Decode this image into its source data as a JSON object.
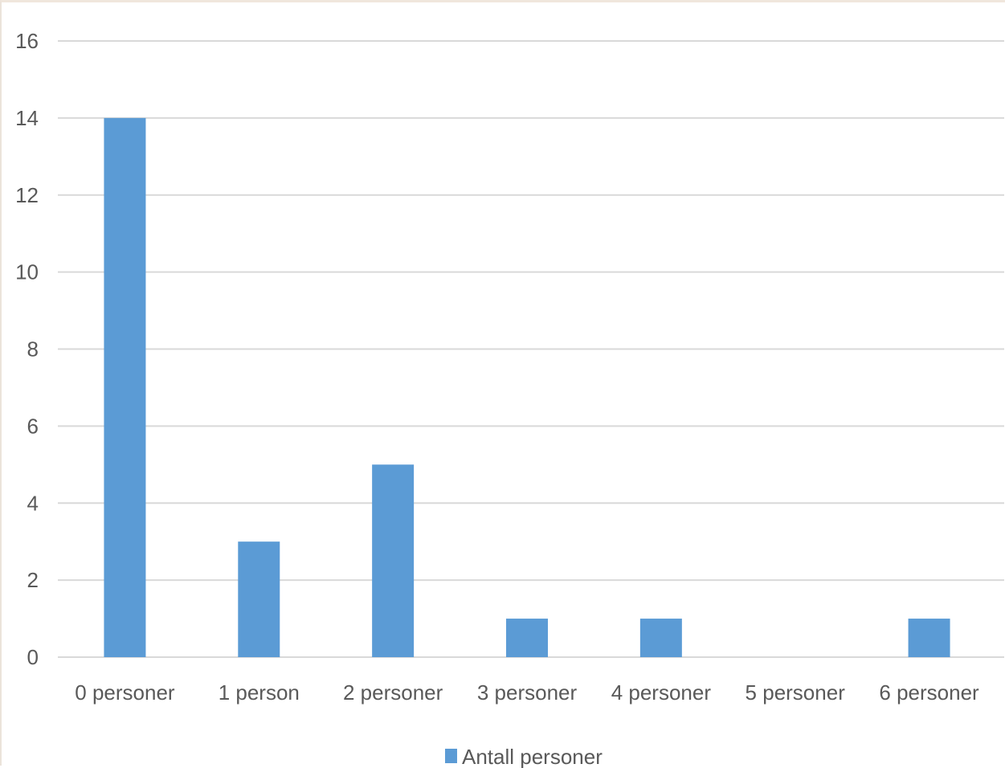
{
  "chart_data": {
    "type": "bar",
    "categories": [
      "0 personer",
      "1 person",
      "2 personer",
      "3 personer",
      "4 personer",
      "5 personer",
      "6 personer"
    ],
    "series": [
      {
        "name": "Antall personer",
        "values": [
          14,
          3,
          5,
          1,
          1,
          0,
          1
        ],
        "color": "#5b9bd5"
      }
    ],
    "title": "",
    "xlabel": "",
    "ylabel": "",
    "ylim": [
      0,
      16
    ],
    "yticks": [
      0,
      2,
      4,
      6,
      8,
      10,
      12,
      14,
      16
    ],
    "grid": true,
    "legend_position": "bottom"
  }
}
